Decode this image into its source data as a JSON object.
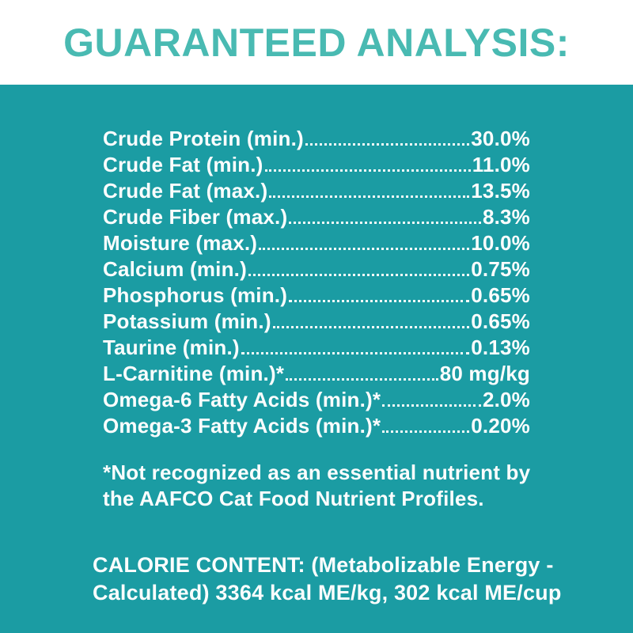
{
  "colors": {
    "panel_background": "#1B9CA3",
    "header_background": "#FFFFFF",
    "title_text": "#49BAB2",
    "body_text": "#FBFDFD"
  },
  "header": {
    "title": "GUARANTEED ANALYSIS:"
  },
  "analysis": {
    "rows": [
      {
        "label": "Crude Protein (min.)",
        "value": "30.0%"
      },
      {
        "label": "Crude Fat (min.)",
        "value": "11.0%"
      },
      {
        "label": "Crude Fat (max.)",
        "value": "13.5%"
      },
      {
        "label": "Crude Fiber (max.)",
        "value": "8.3%"
      },
      {
        "label": "Moisture (max.)",
        "value": "10.0%"
      },
      {
        "label": "Calcium (min.)",
        "value": "0.75%"
      },
      {
        "label": "Phosphorus (min.)",
        "value": "0.65%"
      },
      {
        "label": "Potassium (min.)",
        "value": "0.65%"
      },
      {
        "label": "Taurine (min.)",
        "value": "0.13%"
      },
      {
        "label": "L-Carnitine (min.)*",
        "value": "80 mg/kg"
      },
      {
        "label": "Omega-6 Fatty Acids (min.)*",
        "value": "2.0%"
      },
      {
        "label": "Omega-3 Fatty Acids (min.)*",
        "value": "0.20%"
      }
    ]
  },
  "footnote": {
    "lines": [
      "*Not recognized as an essential nutrient by",
      "the AAFCO Cat Food Nutrient Profiles."
    ]
  },
  "calorie": {
    "lines": [
      "CALORIE CONTENT: (Metabolizable Energy -",
      "Calculated) 3364 kcal ME/kg, 302 kcal ME/cup"
    ]
  }
}
